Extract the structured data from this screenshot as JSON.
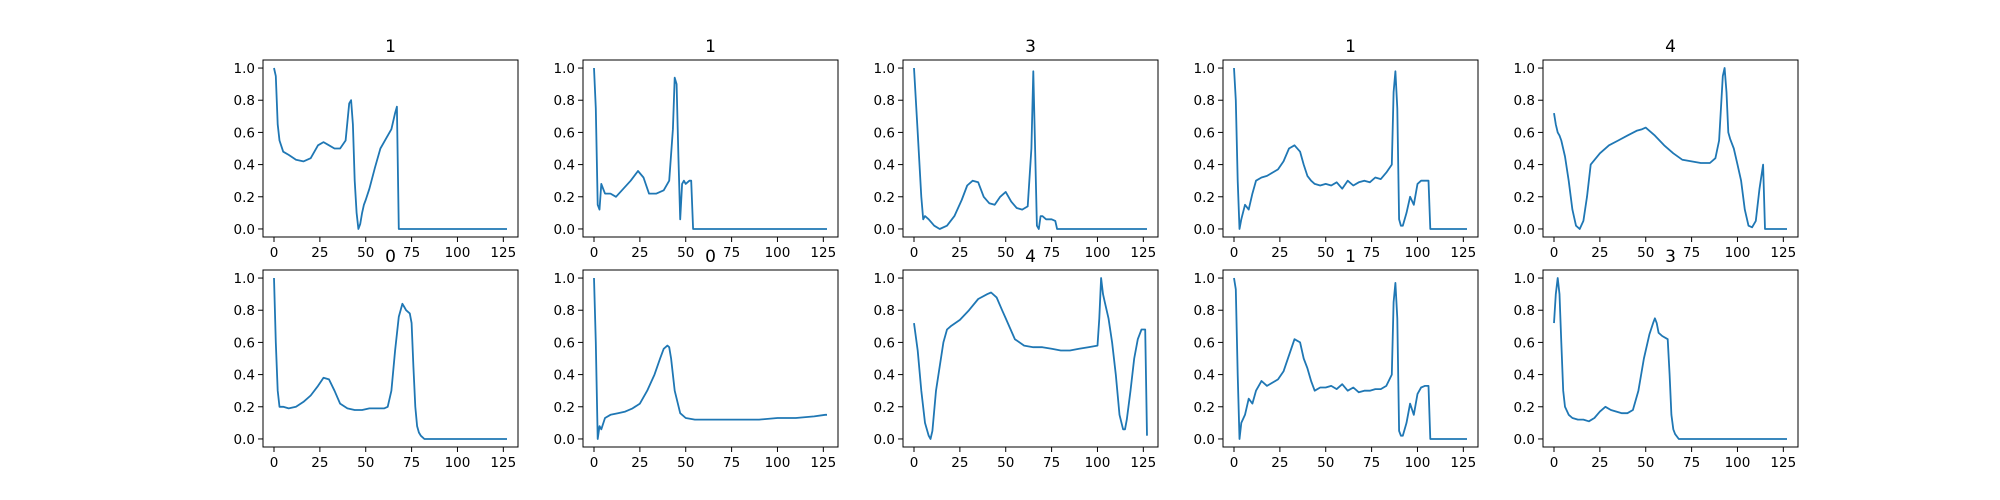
{
  "chart_data": [
    {
      "type": "line",
      "title": "1",
      "xticks": [
        0,
        25,
        50,
        75,
        100,
        125
      ],
      "yticks": [
        "0.0",
        "0.2",
        "0.4",
        "0.6",
        "0.8",
        "1.0"
      ],
      "xlim": [
        -6,
        133
      ],
      "ylim": [
        -0.05,
        1.05
      ],
      "color": "#1f77b4",
      "series": [
        {
          "x": [
            0,
            1,
            2,
            3,
            5,
            8,
            12,
            16,
            20,
            24,
            27,
            30,
            33,
            36,
            39,
            41,
            42,
            43,
            44,
            45,
            46,
            47,
            48,
            49,
            50,
            52,
            55,
            58,
            61,
            64,
            66,
            67,
            68,
            70,
            127
          ],
          "y": [
            1.0,
            0.95,
            0.65,
            0.55,
            0.48,
            0.46,
            0.43,
            0.42,
            0.44,
            0.52,
            0.54,
            0.52,
            0.5,
            0.5,
            0.55,
            0.78,
            0.8,
            0.65,
            0.3,
            0.1,
            0.0,
            0.03,
            0.1,
            0.15,
            0.18,
            0.25,
            0.38,
            0.5,
            0.56,
            0.62,
            0.72,
            0.76,
            0.0,
            0.0,
            0.0
          ]
        }
      ]
    },
    {
      "type": "line",
      "title": "1",
      "xticks": [
        0,
        25,
        50,
        75,
        100,
        125
      ],
      "yticks": [
        "0.0",
        "0.2",
        "0.4",
        "0.6",
        "0.8",
        "1.0"
      ],
      "xlim": [
        -6,
        133
      ],
      "ylim": [
        -0.05,
        1.05
      ],
      "color": "#1f77b4",
      "series": [
        {
          "x": [
            0,
            1,
            2,
            3,
            4,
            6,
            9,
            12,
            16,
            20,
            24,
            27,
            30,
            34,
            38,
            41,
            43,
            44,
            45,
            46,
            47,
            48,
            49,
            50,
            52,
            53,
            54,
            127
          ],
          "y": [
            1.0,
            0.75,
            0.15,
            0.12,
            0.28,
            0.22,
            0.22,
            0.2,
            0.25,
            0.3,
            0.36,
            0.32,
            0.22,
            0.22,
            0.24,
            0.3,
            0.62,
            0.94,
            0.9,
            0.45,
            0.06,
            0.28,
            0.3,
            0.28,
            0.3,
            0.3,
            0.0,
            0.0
          ]
        }
      ]
    },
    {
      "type": "line",
      "title": "3",
      "xticks": [
        0,
        25,
        50,
        75,
        100,
        125
      ],
      "yticks": [
        "0.0",
        "0.2",
        "0.4",
        "0.6",
        "0.8",
        "1.0"
      ],
      "xlim": [
        -6,
        133
      ],
      "ylim": [
        -0.05,
        1.05
      ],
      "color": "#1f77b4",
      "series": [
        {
          "x": [
            0,
            2,
            4,
            5,
            6,
            8,
            11,
            14,
            18,
            22,
            26,
            29,
            32,
            35,
            38,
            41,
            44,
            47,
            50,
            53,
            56,
            59,
            62,
            64,
            65,
            66,
            67,
            68,
            69,
            70,
            72,
            75,
            77,
            78,
            80,
            127
          ],
          "y": [
            1.0,
            0.6,
            0.2,
            0.06,
            0.08,
            0.06,
            0.02,
            0.0,
            0.02,
            0.08,
            0.18,
            0.27,
            0.3,
            0.29,
            0.2,
            0.16,
            0.15,
            0.2,
            0.23,
            0.17,
            0.13,
            0.12,
            0.14,
            0.5,
            0.98,
            0.5,
            0.02,
            0.0,
            0.08,
            0.08,
            0.06,
            0.06,
            0.05,
            0.0,
            0.0,
            0.0
          ]
        }
      ]
    },
    {
      "type": "line",
      "title": "1",
      "xticks": [
        0,
        25,
        50,
        75,
        100,
        125
      ],
      "yticks": [
        "0.0",
        "0.2",
        "0.4",
        "0.6",
        "0.8",
        "1.0"
      ],
      "xlim": [
        -6,
        133
      ],
      "ylim": [
        -0.05,
        1.05
      ],
      "color": "#1f77b4",
      "series": [
        {
          "x": [
            0,
            1,
            2,
            3,
            4,
            6,
            8,
            10,
            12,
            15,
            18,
            21,
            24,
            27,
            30,
            33,
            36,
            38,
            40,
            42,
            44,
            47,
            50,
            53,
            56,
            59,
            62,
            65,
            68,
            71,
            74,
            77,
            80,
            83,
            86,
            87,
            88,
            89,
            90,
            91,
            92,
            94,
            96,
            98,
            100,
            102,
            104,
            106,
            107,
            127
          ],
          "y": [
            1.0,
            0.8,
            0.3,
            0.0,
            0.06,
            0.15,
            0.12,
            0.22,
            0.3,
            0.32,
            0.33,
            0.35,
            0.37,
            0.42,
            0.5,
            0.52,
            0.48,
            0.4,
            0.33,
            0.3,
            0.28,
            0.27,
            0.28,
            0.27,
            0.29,
            0.25,
            0.3,
            0.27,
            0.29,
            0.3,
            0.29,
            0.32,
            0.31,
            0.35,
            0.4,
            0.85,
            0.98,
            0.75,
            0.06,
            0.02,
            0.02,
            0.1,
            0.2,
            0.15,
            0.28,
            0.3,
            0.3,
            0.3,
            0.0,
            0.0
          ]
        }
      ]
    },
    {
      "type": "line",
      "title": "4",
      "xticks": [
        0,
        25,
        50,
        75,
        100,
        125
      ],
      "yticks": [
        "0.0",
        "0.2",
        "0.4",
        "0.6",
        "0.8",
        "1.0"
      ],
      "xlim": [
        -6,
        133
      ],
      "ylim": [
        -0.05,
        1.05
      ],
      "color": "#1f77b4",
      "series": [
        {
          "x": [
            0,
            1,
            2,
            3,
            4,
            6,
            8,
            10,
            12,
            14,
            16,
            18,
            20,
            25,
            30,
            35,
            40,
            45,
            48,
            50,
            55,
            60,
            65,
            70,
            75,
            80,
            85,
            88,
            90,
            92,
            93,
            94,
            95,
            96,
            98,
            100,
            102,
            104,
            106,
            108,
            110,
            112,
            114,
            115,
            127
          ],
          "y": [
            0.72,
            0.65,
            0.6,
            0.58,
            0.55,
            0.45,
            0.3,
            0.12,
            0.02,
            0.0,
            0.05,
            0.2,
            0.4,
            0.47,
            0.52,
            0.55,
            0.58,
            0.61,
            0.62,
            0.63,
            0.58,
            0.52,
            0.47,
            0.43,
            0.42,
            0.41,
            0.41,
            0.44,
            0.55,
            0.95,
            1.0,
            0.85,
            0.6,
            0.56,
            0.5,
            0.4,
            0.3,
            0.12,
            0.02,
            0.01,
            0.05,
            0.25,
            0.4,
            0.0,
            0.0
          ]
        }
      ]
    },
    {
      "type": "line",
      "title": "0",
      "xticks": [
        0,
        25,
        50,
        75,
        100,
        125
      ],
      "yticks": [
        "0.0",
        "0.2",
        "0.4",
        "0.6",
        "0.8",
        "1.0"
      ],
      "xlim": [
        -6,
        133
      ],
      "ylim": [
        -0.05,
        1.05
      ],
      "color": "#1f77b4",
      "series": [
        {
          "x": [
            0,
            1,
            2,
            3,
            5,
            8,
            12,
            16,
            20,
            24,
            27,
            30,
            33,
            36,
            40,
            44,
            48,
            52,
            56,
            60,
            62,
            64,
            66,
            68,
            70,
            71,
            72,
            74,
            75,
            76,
            77,
            78,
            79,
            80,
            82,
            127
          ],
          "y": [
            1.0,
            0.6,
            0.3,
            0.2,
            0.2,
            0.19,
            0.2,
            0.23,
            0.27,
            0.33,
            0.38,
            0.37,
            0.3,
            0.22,
            0.19,
            0.18,
            0.18,
            0.19,
            0.19,
            0.19,
            0.2,
            0.3,
            0.55,
            0.76,
            0.84,
            0.82,
            0.8,
            0.78,
            0.72,
            0.45,
            0.2,
            0.08,
            0.04,
            0.02,
            0.0,
            0.0
          ]
        }
      ]
    },
    {
      "type": "line",
      "title": "0",
      "xticks": [
        0,
        25,
        50,
        75,
        100,
        125
      ],
      "yticks": [
        "0.0",
        "0.2",
        "0.4",
        "0.6",
        "0.8",
        "1.0"
      ],
      "xlim": [
        -6,
        133
      ],
      "ylim": [
        -0.05,
        1.05
      ],
      "color": "#1f77b4",
      "series": [
        {
          "x": [
            0,
            1,
            2,
            3,
            4,
            6,
            9,
            13,
            17,
            21,
            25,
            29,
            33,
            36,
            38,
            40,
            41,
            42,
            44,
            47,
            50,
            55,
            60,
            70,
            80,
            90,
            100,
            110,
            120,
            126,
            127
          ],
          "y": [
            1.0,
            0.6,
            0.0,
            0.08,
            0.06,
            0.13,
            0.15,
            0.16,
            0.17,
            0.19,
            0.22,
            0.3,
            0.4,
            0.5,
            0.56,
            0.58,
            0.57,
            0.5,
            0.3,
            0.16,
            0.13,
            0.12,
            0.12,
            0.12,
            0.12,
            0.12,
            0.13,
            0.13,
            0.14,
            0.15,
            0.15
          ]
        }
      ]
    },
    {
      "type": "line",
      "title": "4",
      "xticks": [
        0,
        25,
        50,
        75,
        100,
        125
      ],
      "yticks": [
        "0.0",
        "0.2",
        "0.4",
        "0.6",
        "0.8",
        "1.0"
      ],
      "xlim": [
        -6,
        133
      ],
      "ylim": [
        -0.05,
        1.05
      ],
      "color": "#1f77b4",
      "series": [
        {
          "x": [
            0,
            2,
            4,
            6,
            8,
            9,
            10,
            12,
            14,
            16,
            18,
            20,
            25,
            30,
            35,
            40,
            42,
            45,
            48,
            50,
            55,
            60,
            65,
            70,
            75,
            80,
            85,
            90,
            95,
            100,
            101,
            102,
            103,
            104,
            106,
            108,
            110,
            112,
            114,
            115,
            116,
            118,
            120,
            122,
            124,
            126,
            127
          ],
          "y": [
            0.72,
            0.55,
            0.3,
            0.1,
            0.02,
            0.0,
            0.05,
            0.3,
            0.45,
            0.6,
            0.68,
            0.7,
            0.74,
            0.8,
            0.87,
            0.9,
            0.91,
            0.88,
            0.8,
            0.75,
            0.62,
            0.58,
            0.57,
            0.57,
            0.56,
            0.55,
            0.55,
            0.56,
            0.57,
            0.58,
            0.75,
            1.0,
            0.9,
            0.85,
            0.75,
            0.6,
            0.4,
            0.15,
            0.06,
            0.06,
            0.12,
            0.3,
            0.5,
            0.62,
            0.68,
            0.68,
            0.02
          ]
        }
      ]
    },
    {
      "type": "line",
      "title": "1",
      "xticks": [
        0,
        25,
        50,
        75,
        100,
        125
      ],
      "yticks": [
        "0.0",
        "0.2",
        "0.4",
        "0.6",
        "0.8",
        "1.0"
      ],
      "xlim": [
        -6,
        133
      ],
      "ylim": [
        -0.05,
        1.05
      ],
      "color": "#1f77b4",
      "series": [
        {
          "x": [
            0,
            1,
            2,
            3,
            4,
            6,
            8,
            10,
            12,
            15,
            18,
            21,
            24,
            27,
            30,
            33,
            36,
            38,
            40,
            42,
            44,
            47,
            50,
            53,
            56,
            59,
            62,
            65,
            68,
            71,
            74,
            77,
            80,
            83,
            86,
            87,
            88,
            89,
            90,
            91,
            92,
            94,
            96,
            98,
            100,
            102,
            104,
            106,
            107,
            127
          ],
          "y": [
            1.0,
            0.93,
            0.4,
            0.0,
            0.1,
            0.15,
            0.25,
            0.22,
            0.3,
            0.36,
            0.33,
            0.35,
            0.37,
            0.42,
            0.52,
            0.62,
            0.6,
            0.5,
            0.44,
            0.36,
            0.3,
            0.32,
            0.32,
            0.33,
            0.31,
            0.34,
            0.3,
            0.32,
            0.29,
            0.3,
            0.3,
            0.31,
            0.31,
            0.33,
            0.4,
            0.85,
            0.97,
            0.75,
            0.05,
            0.02,
            0.02,
            0.1,
            0.22,
            0.15,
            0.28,
            0.32,
            0.33,
            0.33,
            0.0,
            0.0
          ]
        }
      ]
    },
    {
      "type": "line",
      "title": "3",
      "xticks": [
        0,
        25,
        50,
        75,
        100,
        125
      ],
      "yticks": [
        "0.0",
        "0.2",
        "0.4",
        "0.6",
        "0.8",
        "1.0"
      ],
      "xlim": [
        -6,
        133
      ],
      "ylim": [
        -0.05,
        1.05
      ],
      "color": "#1f77b4",
      "series": [
        {
          "x": [
            0,
            1,
            2,
            3,
            4,
            5,
            6,
            8,
            10,
            13,
            16,
            19,
            22,
            25,
            28,
            31,
            34,
            37,
            40,
            43,
            46,
            49,
            52,
            54,
            55,
            56,
            57,
            59,
            62,
            63,
            64,
            65,
            66,
            68,
            70,
            127
          ],
          "y": [
            0.72,
            0.9,
            1.0,
            0.9,
            0.6,
            0.3,
            0.2,
            0.15,
            0.13,
            0.12,
            0.12,
            0.11,
            0.13,
            0.17,
            0.2,
            0.18,
            0.17,
            0.16,
            0.16,
            0.18,
            0.3,
            0.5,
            0.65,
            0.72,
            0.75,
            0.72,
            0.66,
            0.64,
            0.62,
            0.4,
            0.15,
            0.06,
            0.03,
            0.0,
            0.0,
            0.0
          ]
        }
      ]
    }
  ]
}
